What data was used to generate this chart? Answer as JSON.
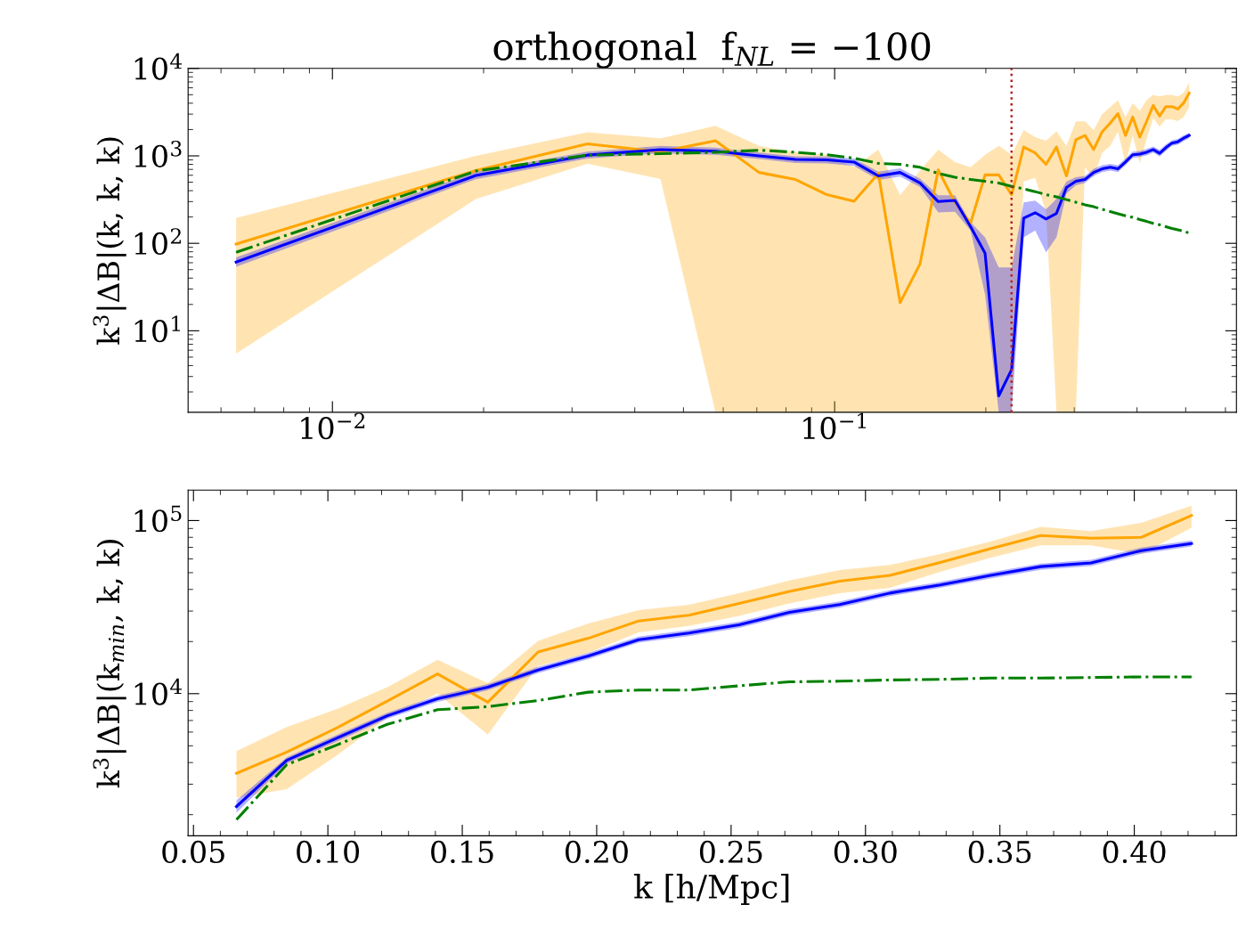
{
  "chart_data": [
    {
      "type": "line",
      "title": "orthogonal  f$_{NL}$ = −100",
      "ylabel": "k$^{3}$|ΔB|(k, k, k)",
      "log": "xy",
      "grid": false,
      "marker": "none",
      "xlim": [
        0.00516,
        0.631
      ],
      "ylim": [
        1.17,
        10000
      ],
      "xticks": [
        {
          "value": 0.01,
          "label": "10$^{−2}$"
        },
        {
          "value": 0.1,
          "label": "10$^{−1}$"
        }
      ],
      "yticks": [
        {
          "value": 10,
          "label": "10$^{1}$"
        },
        {
          "value": 100,
          "label": "10$^{2}$"
        },
        {
          "value": 1000,
          "label": "10$^{3}$"
        },
        {
          "value": 10000,
          "label": "10$^{4}$"
        }
      ],
      "x": [
        0.00643,
        0.0193,
        0.0322,
        0.045,
        0.0579,
        0.0707,
        0.0836,
        0.0965,
        0.1093,
        0.1222,
        0.135,
        0.1479,
        0.1608,
        0.1736,
        0.1865,
        0.1993,
        0.2122,
        0.2251,
        0.2379,
        0.2508,
        0.2636,
        0.2765,
        0.2894,
        0.3022,
        0.3151,
        0.3279,
        0.3408,
        0.3537,
        0.3665,
        0.3794,
        0.3922,
        0.4051,
        0.418,
        0.4308,
        0.4437,
        0.4565,
        0.4694,
        0.4823,
        0.4951,
        0.508
      ],
      "ref_lines": [
        {
          "axis": "x",
          "value": 0.225,
          "color": "#b22222",
          "line_style": "dotted"
        }
      ],
      "series": [
        {
          "color": "#ffa500",
          "line_style": "solid",
          "values": [
            98,
            680,
            1370,
            1110,
            1490,
            646,
            537,
            360,
            302,
            630,
            21,
            58,
            690,
            294,
            170,
            606,
            606,
            360,
            1260,
            1080,
            800,
            1260,
            590,
            1530,
            1710,
            1180,
            1880,
            2370,
            3040,
            1710,
            2780,
            1640,
            2480,
            3770,
            2850,
            3660,
            3660,
            3430,
            4020,
            5220
          ],
          "lower": [
            5.5,
            320,
            815,
            545,
            1.17,
            1.17,
            1.17,
            1.17,
            1.17,
            1.17,
            1.17,
            1.17,
            1.17,
            1.17,
            1.17,
            1.17,
            1.17,
            1.17,
            510,
            560,
            225,
            1.17,
            1.17,
            1.17,
            740,
            560,
            1080,
            1300,
            1880,
            820,
            1710,
            820,
            1550,
            2710,
            2150,
            2620,
            2620,
            2500,
            2780,
            3600
          ],
          "upper": [
            195,
            1000,
            1860,
            1590,
            2200,
            1300,
            1100,
            1030,
            740,
            1180,
            354,
            680,
            1180,
            850,
            740,
            1030,
            1300,
            1030,
            1970,
            1640,
            1490,
            1910,
            1300,
            2480,
            2480,
            1970,
            3000,
            3600,
            4330,
            2780,
            4000,
            3280,
            4330,
            4990,
            4770,
            4990,
            4990,
            4770,
            5250,
            6870
          ]
        },
        {
          "color": "#0000ff",
          "line_style": "solid",
          "values": [
            61,
            596,
            1020,
            1180,
            1130,
            1000,
            910,
            900,
            850,
            590,
            646,
            490,
            300,
            310,
            155,
            77,
            1.8,
            3.6,
            194,
            224,
            190,
            220,
            434,
            512,
            537,
            646,
            710,
            740,
            710,
            850,
            1030,
            1050,
            1100,
            1180,
            1070,
            1240,
            1400,
            1450,
            1590,
            1710
          ],
          "lower": [
            54,
            540,
            930,
            1070,
            1030,
            920,
            830,
            820,
            770,
            530,
            580,
            440,
            225,
            230,
            140,
            26,
            1.17,
            1.17,
            117,
            140,
            79,
            117,
            370,
            460,
            490,
            590,
            650,
            680,
            650,
            780,
            950,
            970,
            1010,
            1090,
            980,
            1140,
            1300,
            1340,
            1470,
            1590
          ],
          "upper": [
            69,
            660,
            1120,
            1300,
            1240,
            1090,
            990,
            980,
            930,
            660,
            720,
            550,
            355,
            355,
            175,
            117,
            53,
            53,
            293,
            308,
            245,
            323,
            510,
            570,
            590,
            710,
            780,
            810,
            780,
            930,
            1120,
            1140,
            1200,
            1280,
            1170,
            1350,
            1510,
            1560,
            1710,
            1840
          ]
        },
        {
          "color": "#008000",
          "line_style": "dashdot",
          "values": [
            79,
            670,
            1020,
            1060,
            1100,
            1160,
            1100,
            1030,
            940,
            820,
            800,
            740,
            630,
            570,
            537,
            512,
            490,
            447,
            420,
            390,
            360,
            340,
            316,
            295,
            276,
            262,
            245,
            231,
            218,
            207,
            198,
            187,
            178,
            169,
            163,
            155,
            148,
            143,
            138,
            131
          ]
        }
      ]
    },
    {
      "type": "line",
      "xlabel": "k [h/Mpc]",
      "ylabel": "k$^{3}$|ΔB|(k$_{min}$, k, k)",
      "log": "y",
      "grid": false,
      "marker": "none",
      "xlim": [
        0.048,
        0.438
      ],
      "ylim": [
        1510,
        150000
      ],
      "xticks": [
        0.05,
        {
          "value": 0.1,
          "label": "0.10"
        },
        0.15,
        {
          "value": 0.2,
          "label": "0.20"
        },
        0.25,
        {
          "value": 0.3,
          "label": "0.30"
        },
        0.35,
        {
          "value": 0.4,
          "label": "0.40"
        }
      ],
      "yticks": [
        {
          "value": 10000,
          "label": "10$^{4}$"
        },
        {
          "value": 100000,
          "label": "10$^{5}$"
        }
      ],
      "x": [
        0.066,
        0.0847,
        0.1034,
        0.1221,
        0.1408,
        0.1595,
        0.1782,
        0.1969,
        0.2156,
        0.2343,
        0.253,
        0.2717,
        0.2904,
        0.3091,
        0.3278,
        0.3465,
        0.3652,
        0.3839,
        0.4026,
        0.4213
      ],
      "series": [
        {
          "color": "#ffa500",
          "line_style": "solid",
          "values": [
            3470,
            4600,
            6350,
            9050,
            13000,
            8930,
            17400,
            20900,
            26300,
            28400,
            33200,
            39000,
            44600,
            48200,
            57300,
            68800,
            82000,
            79000,
            80000,
            107000
          ],
          "lower": [
            2500,
            2810,
            4410,
            7270,
            10000,
            5800,
            14400,
            17200,
            22600,
            24600,
            28100,
            33200,
            38100,
            40900,
            50600,
            61000,
            72000,
            72000,
            64000,
            91000
          ],
          "upper": [
            4660,
            6410,
            8160,
            10900,
            15700,
            11500,
            20200,
            25400,
            30400,
            32600,
            38100,
            45000,
            51800,
            55500,
            64000,
            75700,
            92000,
            87000,
            97000,
            122000
          ]
        },
        {
          "color": "#0000ff",
          "line_style": "solid",
          "values": [
            2230,
            4120,
            5540,
            7450,
            9340,
            10900,
            13700,
            16500,
            20500,
            22400,
            25000,
            29500,
            32700,
            38100,
            42500,
            48200,
            54200,
            56900,
            67000,
            73700
          ],
          "lower": [
            2050,
            3950,
            5300,
            7150,
            8970,
            10450,
            13150,
            15850,
            19700,
            21500,
            24000,
            28300,
            31400,
            36600,
            40800,
            46300,
            52000,
            54600,
            64300,
            70800
          ],
          "upper": [
            2420,
            4290,
            5780,
            7760,
            9730,
            11350,
            14270,
            17180,
            21350,
            23330,
            26040,
            30730,
            34060,
            39690,
            44270,
            50210,
            56460,
            59270,
            69790,
            76770
          ]
        },
        {
          "color": "#008000",
          "line_style": "dashdot",
          "values": [
            1870,
            3890,
            5060,
            6650,
            8080,
            8420,
            9130,
            10200,
            10500,
            10500,
            11100,
            11700,
            11800,
            12000,
            12100,
            12300,
            12300,
            12400,
            12500,
            12500
          ]
        }
      ]
    }
  ]
}
